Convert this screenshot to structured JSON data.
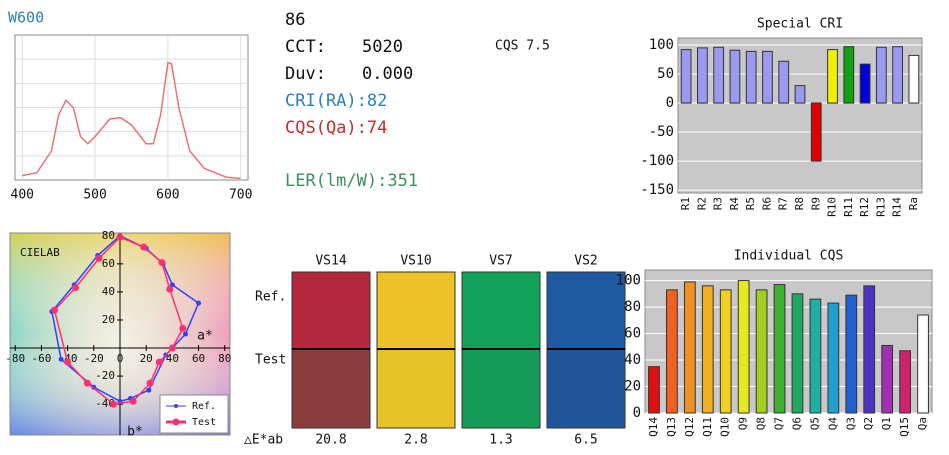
{
  "info": {
    "index": "86",
    "cct_label": "CCT:",
    "cct_value": "5020",
    "duv_label": "Duv:",
    "duv_value": "0.000",
    "cri": "CRI(RA):82",
    "cqs": "CQS(Qa):74",
    "ler": "LER(lm/W):351",
    "cqs_version": "CQS 7.5"
  },
  "color_samples": {
    "row_labels": [
      "Ref.",
      "Test"
    ],
    "delta_label": "△E*ab",
    "samples": [
      {
        "name": "VS14",
        "ref_color": "#b3283a",
        "test_color": "#8c3c3a",
        "delta_e": 20.8
      },
      {
        "name": "VS10",
        "ref_color": "#ecc228",
        "test_color": "#e6c426",
        "delta_e": 2.8
      },
      {
        "name": "VS7",
        "ref_color": "#13a15a",
        "test_color": "#159a57",
        "delta_e": 1.3
      },
      {
        "name": "VS2",
        "ref_color": "#1f5aa0",
        "test_color": "#22569a",
        "delta_e": 6.5
      }
    ]
  },
  "chart_data": [
    {
      "type": "line",
      "title": "W600",
      "color": "#f07070",
      "x": [
        400,
        420,
        440,
        450,
        460,
        470,
        480,
        490,
        500,
        520,
        535,
        550,
        570,
        580,
        590,
        600,
        605,
        615,
        630,
        650,
        680,
        700
      ],
      "values": [
        0.03,
        0.05,
        0.2,
        0.45,
        0.55,
        0.5,
        0.3,
        0.25,
        0.3,
        0.42,
        0.43,
        0.38,
        0.25,
        0.25,
        0.45,
        0.81,
        0.8,
        0.5,
        0.2,
        0.08,
        0.02,
        0.01
      ],
      "xlim": [
        390,
        710
      ],
      "ylim": [
        0,
        1
      ],
      "xticks": [
        400,
        500,
        600,
        700
      ],
      "grid": true
    },
    {
      "type": "bar",
      "title": "Special CRI",
      "categories": [
        "R1",
        "R2",
        "R3",
        "R4",
        "R5",
        "R6",
        "R7",
        "R8",
        "R9",
        "R10",
        "R11",
        "R12",
        "R13",
        "R14",
        "Ra"
      ],
      "values": [
        92,
        95,
        96,
        91,
        89,
        89,
        72,
        30,
        -100,
        92,
        97,
        67,
        96,
        97,
        82
      ],
      "colors": [
        "#9a9af0",
        "#9a9af0",
        "#9a9af0",
        "#9a9af0",
        "#9a9af0",
        "#9a9af0",
        "#9a9af0",
        "#9a9af0",
        "#dd0000",
        "#f0f000",
        "#10a010",
        "#0000dd",
        "#9a9af0",
        "#9a9af0",
        "#ffffff"
      ],
      "ylim": [
        -155,
        112
      ],
      "yticks": [
        100,
        50,
        0,
        -50,
        -100,
        -150
      ],
      "grid": true
    },
    {
      "type": "scatter",
      "title": "CIELAB",
      "x_label": "a*",
      "y_label": "b*",
      "series": [
        {
          "name": "Ref.",
          "color": "#3040ff",
          "x": [
            0,
            20,
            33,
            40,
            60,
            50,
            35,
            22,
            8,
            0,
            -20,
            -45,
            -52,
            -35,
            -17
          ],
          "y": [
            80,
            71,
            60,
            45,
            32,
            10,
            -5,
            -30,
            -36,
            -38,
            -28,
            -8,
            26,
            45,
            66
          ]
        },
        {
          "name": "Test",
          "color": "#ff3070",
          "x": [
            0,
            18,
            32,
            38,
            48,
            40,
            30,
            23,
            10,
            -5,
            -25,
            -40,
            -50,
            -34,
            -16
          ],
          "y": [
            79,
            72,
            61,
            42,
            14,
            0,
            -10,
            -25,
            -38,
            -40,
            -25,
            -10,
            27,
            43,
            64
          ]
        }
      ],
      "xlim": [
        -84,
        84
      ],
      "ylim": [
        -62,
        82
      ],
      "xticks": [
        -80,
        -60,
        -40,
        -20,
        0,
        20,
        40,
        60,
        80
      ],
      "yticks": [
        80,
        60,
        40,
        20,
        -20,
        -40
      ],
      "legend": "lower right"
    },
    {
      "type": "bar",
      "title": "Individual CQS",
      "categories": [
        "Q14",
        "Q13",
        "Q12",
        "Q11",
        "Q10",
        "Q9",
        "Q8",
        "Q7",
        "Q6",
        "Q5",
        "Q4",
        "Q3",
        "Q2",
        "Q1",
        "Q15",
        "Qa"
      ],
      "values": [
        35,
        93,
        99,
        96,
        93,
        100,
        93,
        97,
        90,
        86,
        83,
        89,
        96,
        51,
        47,
        74
      ],
      "colors": [
        "#e01010",
        "#f06020",
        "#f09020",
        "#f0b020",
        "#f0d020",
        "#e8e820",
        "#a0d020",
        "#40b030",
        "#20a860",
        "#20b0a0",
        "#20a0d0",
        "#2060d0",
        "#5030c0",
        "#a030b0",
        "#d02070",
        "#ffffff"
      ],
      "ylim": [
        0,
        108
      ],
      "yticks": [
        0,
        20,
        40,
        60,
        80,
        100
      ],
      "grid": true
    }
  ]
}
